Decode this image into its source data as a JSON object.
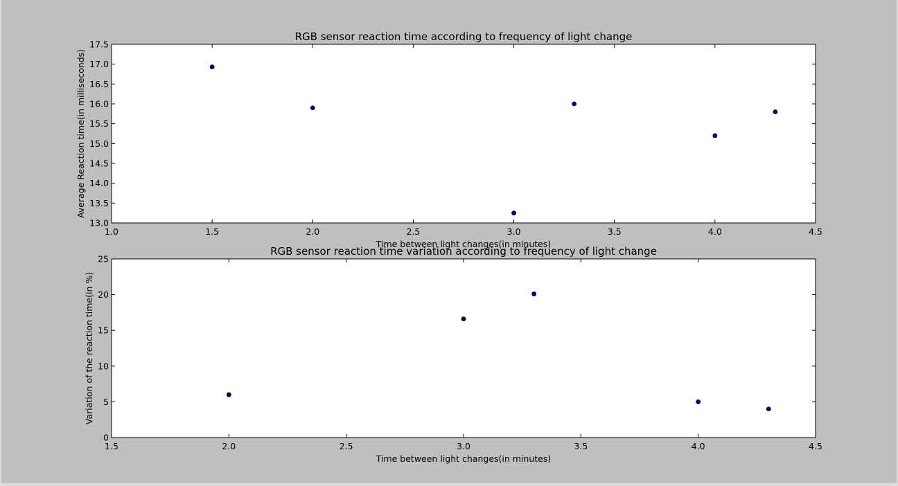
{
  "chart_data": [
    {
      "type": "scatter",
      "title": "RGB sensor reaction time according to frequency of light change",
      "xlabel": "Time between light changes(in minutes)",
      "ylabel": "Average Reaction time(in milliseconds)",
      "xlim": [
        1.0,
        4.5
      ],
      "ylim": [
        13.0,
        17.5
      ],
      "xticks": [
        "1.0",
        "1.5",
        "2.0",
        "2.5",
        "3.0",
        "3.5",
        "4.0",
        "4.5"
      ],
      "yticks": [
        "13.0",
        "13.5",
        "14.0",
        "14.5",
        "15.0",
        "15.5",
        "16.0",
        "16.5",
        "17.0",
        "17.5"
      ],
      "grid": false,
      "marker_color": "#00008b",
      "points": [
        {
          "x": 1.5,
          "y": 16.93
        },
        {
          "x": 2.0,
          "y": 15.9
        },
        {
          "x": 3.0,
          "y": 13.25
        },
        {
          "x": 3.3,
          "y": 16.0
        },
        {
          "x": 4.0,
          "y": 15.2
        },
        {
          "x": 4.3,
          "y": 15.8
        }
      ]
    },
    {
      "type": "scatter",
      "title": "RGB sensor reaction time variation according to frequency of light change",
      "xlabel": "Time between light changes(in minutes)",
      "ylabel": "Variation of the reaction time(in %)",
      "xlim": [
        1.5,
        4.5
      ],
      "ylim": [
        0,
        25
      ],
      "xticks": [
        "1.5",
        "2.0",
        "2.5",
        "3.0",
        "3.5",
        "4.0",
        "4.5"
      ],
      "yticks": [
        "0",
        "5",
        "10",
        "15",
        "20",
        "25"
      ],
      "grid": false,
      "marker_color": "#00008b",
      "points": [
        {
          "x": 2.0,
          "y": 6.0
        },
        {
          "x": 3.0,
          "y": 16.6
        },
        {
          "x": 3.3,
          "y": 20.1
        },
        {
          "x": 4.0,
          "y": 5.0
        },
        {
          "x": 4.3,
          "y": 4.0
        }
      ]
    }
  ]
}
